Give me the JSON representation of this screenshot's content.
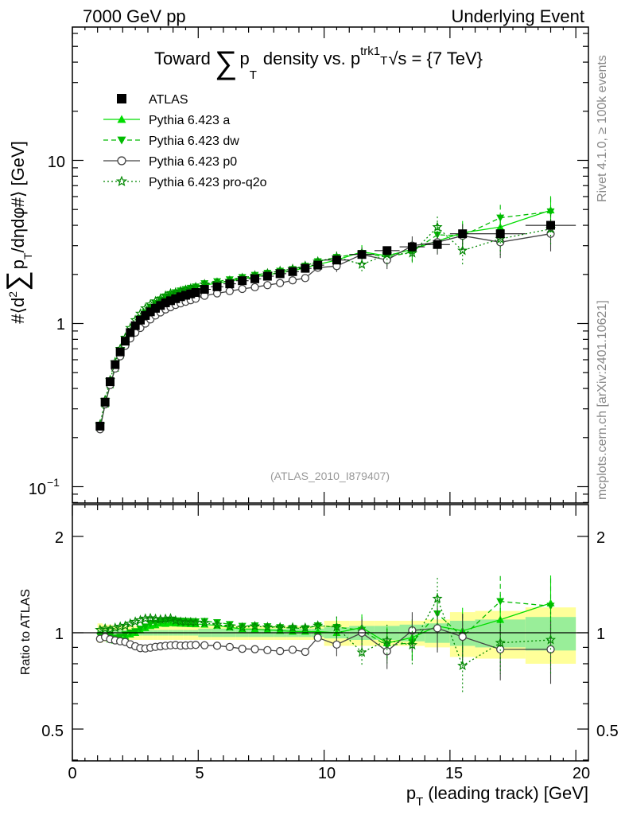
{
  "header": {
    "left": "7000 GeV pp",
    "right": "Underlying Event"
  },
  "side_labels": {
    "rivet": "Rivet 4.1.0, ≥ 100k events",
    "mcplots": "mcplots.cern.ch [arXiv:2401.10621]"
  },
  "chart_data": {
    "type": "line",
    "title": "Toward ∑ p_T density vs. p_T^trk1, √s = {7 TeV}",
    "title_parts": {
      "pre": "Toward",
      "sum": "∑",
      "p": "p",
      "sub": "T",
      "mid": "density vs. p",
      "sup": "trk1",
      "sqrt": "√",
      "post": "s = {7 TeV}"
    },
    "analysis_label": "(ATLAS_2010_I879407)",
    "xlabel": "p_T (leading track) [GeV]",
    "xlabel_parts": {
      "p": "p",
      "sub": "T",
      "rest": "(leading track) [GeV]"
    },
    "ylabel": "#⟨d²∑p_T/dηdφ#⟩ [GeV]",
    "ylabel_parts": {
      "a": "#⟨d",
      "sup": "2",
      "sum": "∑",
      "b": "p",
      "sub": "T",
      "c": "/dηdφ#⟩ [GeV]"
    },
    "ratio_ylabel": "Ratio to ATLAS",
    "xlim": [
      0,
      20.5
    ],
    "ylim": [
      0.075,
      60
    ],
    "ratio_ylim": [
      0.4,
      2.4
    ],
    "x_ticks": [
      "0",
      "5",
      "10",
      "15",
      "20"
    ],
    "y_ticks": [
      "1",
      "10"
    ],
    "y_tick_minus1": {
      "base": "10",
      "exp": "−1"
    },
    "ratio_ticks": [
      "0.5",
      "1",
      "2"
    ],
    "legend": [
      "ATLAS",
      "Pythia 6.423 a",
      "Pythia 6.423 dw",
      "Pythia 6.423 p0",
      "Pythia 6.423 pro-q2o"
    ],
    "x": [
      1.1,
      1.3,
      1.5,
      1.7,
      1.9,
      2.1,
      2.3,
      2.5,
      2.7,
      2.9,
      3.1,
      3.3,
      3.5,
      3.7,
      3.9,
      4.1,
      4.3,
      4.5,
      4.7,
      4.9,
      5.25,
      5.75,
      6.25,
      6.75,
      7.25,
      7.75,
      8.25,
      8.75,
      9.25,
      9.75,
      10.5,
      11.5,
      12.5,
      13.5,
      14.5,
      15.5,
      17,
      19
    ],
    "x_bins": [
      [
        1.0,
        1.2
      ],
      [
        1.2,
        1.4
      ],
      [
        1.4,
        1.6
      ],
      [
        1.6,
        1.8
      ],
      [
        1.8,
        2.0
      ],
      [
        2.0,
        2.2
      ],
      [
        2.2,
        2.4
      ],
      [
        2.4,
        2.6
      ],
      [
        2.6,
        2.8
      ],
      [
        2.8,
        3.0
      ],
      [
        3.0,
        3.2
      ],
      [
        3.2,
        3.4
      ],
      [
        3.4,
        3.6
      ],
      [
        3.6,
        3.8
      ],
      [
        3.8,
        4.0
      ],
      [
        4.0,
        4.2
      ],
      [
        4.2,
        4.4
      ],
      [
        4.4,
        4.6
      ],
      [
        4.6,
        4.8
      ],
      [
        4.8,
        5.0
      ],
      [
        5.0,
        5.5
      ],
      [
        5.5,
        6.0
      ],
      [
        6.0,
        6.5
      ],
      [
        6.5,
        7.0
      ],
      [
        7.0,
        7.5
      ],
      [
        7.5,
        8.0
      ],
      [
        8.0,
        8.5
      ],
      [
        8.5,
        9.0
      ],
      [
        9.0,
        9.5
      ],
      [
        9.5,
        10.0
      ],
      [
        10,
        11
      ],
      [
        11,
        12
      ],
      [
        12,
        13
      ],
      [
        13,
        14
      ],
      [
        14,
        15
      ],
      [
        15,
        16
      ],
      [
        16,
        18
      ],
      [
        18,
        20
      ]
    ],
    "data": {
      "name": "ATLAS",
      "values": [
        0.235,
        0.33,
        0.44,
        0.56,
        0.67,
        0.78,
        0.88,
        0.97,
        1.05,
        1.12,
        1.18,
        1.24,
        1.29,
        1.34,
        1.38,
        1.42,
        1.46,
        1.49,
        1.52,
        1.55,
        1.62,
        1.68,
        1.75,
        1.83,
        1.88,
        1.95,
        2.02,
        2.08,
        2.18,
        2.28,
        2.45,
        2.65,
        2.8,
        2.95,
        3.05,
        3.55,
        3.55,
        4.0
      ],
      "ratio_band_stat": [
        0.02,
        0.02,
        0.02,
        0.02,
        0.02,
        0.02,
        0.02,
        0.02,
        0.02,
        0.02,
        0.02,
        0.02,
        0.02,
        0.02,
        0.02,
        0.02,
        0.02,
        0.02,
        0.02,
        0.02,
        0.03,
        0.03,
        0.03,
        0.03,
        0.03,
        0.03,
        0.03,
        0.03,
        0.03,
        0.03,
        0.04,
        0.05,
        0.05,
        0.06,
        0.07,
        0.09,
        0.1,
        0.12
      ],
      "ratio_band_total": [
        0.07,
        0.06,
        0.06,
        0.05,
        0.05,
        0.05,
        0.05,
        0.05,
        0.05,
        0.05,
        0.05,
        0.05,
        0.05,
        0.05,
        0.05,
        0.05,
        0.05,
        0.05,
        0.05,
        0.05,
        0.05,
        0.05,
        0.05,
        0.05,
        0.05,
        0.05,
        0.05,
        0.05,
        0.05,
        0.05,
        0.09,
        0.09,
        0.09,
        0.09,
        0.1,
        0.16,
        0.17,
        0.2
      ]
    },
    "series": [
      {
        "name": "Pythia 6.423 a",
        "marker": "triangle-up",
        "line": "solid",
        "color": "#00dd00",
        "values": [
          0.23,
          0.32,
          0.42,
          0.53,
          0.64,
          0.76,
          0.87,
          0.97,
          1.07,
          1.16,
          1.24,
          1.31,
          1.38,
          1.43,
          1.48,
          1.52,
          1.56,
          1.59,
          1.62,
          1.65,
          1.72,
          1.77,
          1.82,
          1.88,
          1.93,
          1.99,
          2.05,
          2.1,
          2.2,
          2.3,
          2.45,
          2.75,
          2.6,
          2.85,
          3.2,
          3.6,
          3.9,
          4.95
        ]
      },
      {
        "name": "Pythia 6.423 dw",
        "marker": "triangle-down",
        "line": "dashed",
        "color": "#00bb00",
        "values": [
          0.23,
          0.32,
          0.43,
          0.54,
          0.65,
          0.77,
          0.88,
          0.98,
          1.08,
          1.17,
          1.26,
          1.33,
          1.4,
          1.46,
          1.51,
          1.55,
          1.59,
          1.62,
          1.65,
          1.68,
          1.76,
          1.81,
          1.86,
          1.92,
          1.98,
          2.04,
          2.1,
          2.15,
          2.25,
          2.4,
          2.55,
          2.7,
          2.55,
          2.75,
          3.5,
          3.45,
          4.45,
          4.85
        ]
      },
      {
        "name": "Pythia 6.423 p0",
        "marker": "circle-open",
        "line": "solid",
        "color": "#444444",
        "values": [
          0.225,
          0.32,
          0.42,
          0.53,
          0.63,
          0.73,
          0.81,
          0.88,
          0.94,
          1.0,
          1.06,
          1.12,
          1.17,
          1.22,
          1.26,
          1.3,
          1.33,
          1.36,
          1.39,
          1.42,
          1.48,
          1.53,
          1.58,
          1.63,
          1.67,
          1.72,
          1.77,
          1.84,
          1.9,
          2.2,
          2.25,
          2.65,
          2.45,
          3.0,
          3.15,
          3.45,
          3.15,
          3.55
        ]
      },
      {
        "name": "Pythia 6.423 pro-q2o",
        "marker": "star-open",
        "line": "dotted",
        "color": "#008800",
        "values": [
          0.24,
          0.34,
          0.45,
          0.58,
          0.7,
          0.82,
          0.94,
          1.05,
          1.15,
          1.24,
          1.31,
          1.37,
          1.42,
          1.48,
          1.53,
          1.55,
          1.58,
          1.61,
          1.64,
          1.67,
          1.74,
          1.78,
          1.83,
          1.9,
          1.97,
          2.03,
          2.1,
          2.16,
          2.26,
          2.4,
          2.55,
          2.3,
          2.65,
          2.7,
          3.9,
          2.8,
          3.3,
          3.8
        ]
      }
    ]
  }
}
